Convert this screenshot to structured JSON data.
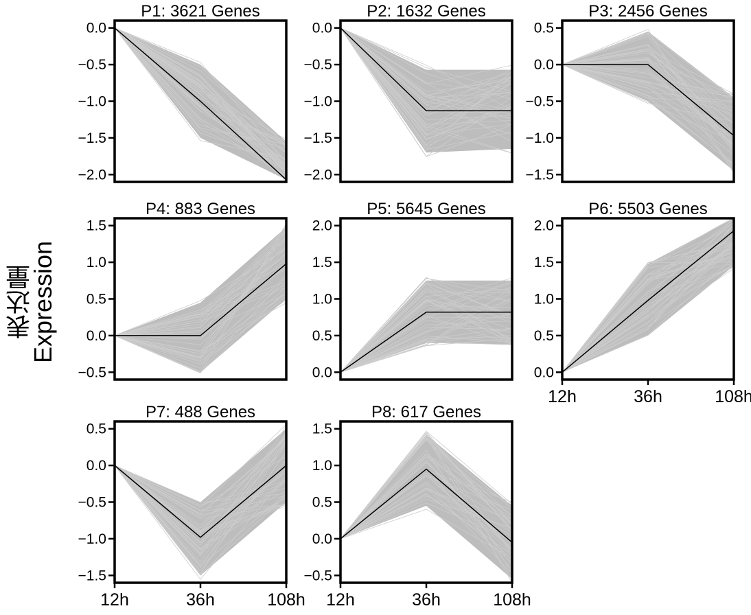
{
  "figure": {
    "ylabel_cn": "表达量",
    "ylabel_en": "Expression",
    "band_color": "#bdbdbd",
    "line_color": "#cccccc",
    "mean_color": "#000000"
  },
  "chart_data": [
    {
      "type": "line",
      "title": "P1: 3621 Genes",
      "categories": [
        "12h",
        "36h",
        "108h"
      ],
      "mean": [
        0,
        -1.0,
        -2.07
      ],
      "band_lower": [
        0,
        -1.5,
        -2.07
      ],
      "band_upper": [
        0,
        -0.5,
        -1.55
      ],
      "yticks": [
        "0.0",
        "-0.5",
        "-1.0",
        "-1.5",
        "-2.0"
      ],
      "ytick_values": [
        0,
        -0.5,
        -1.0,
        -1.5,
        -2.0
      ],
      "ylim": [
        -2.1,
        0.1
      ],
      "show_xticks": false
    },
    {
      "type": "line",
      "title": "P2: 1632 Genes",
      "categories": [
        "12h",
        "36h",
        "108h"
      ],
      "mean": [
        0,
        -1.13,
        -1.13
      ],
      "band_lower": [
        0,
        -1.7,
        -1.65
      ],
      "band_upper": [
        0,
        -0.57,
        -0.57
      ],
      "yticks": [
        "0.0",
        "-0.5",
        "-1.0",
        "-1.5",
        "-2.0"
      ],
      "ytick_values": [
        0,
        -0.5,
        -1.0,
        -1.5,
        -2.0
      ],
      "ylim": [
        -2.1,
        0.1
      ],
      "show_xticks": false
    },
    {
      "type": "line",
      "title": "P3: 2456 Genes",
      "categories": [
        "12h",
        "36h",
        "108h"
      ],
      "mean": [
        0,
        0,
        -0.97
      ],
      "band_lower": [
        0,
        -0.5,
        -1.45
      ],
      "band_upper": [
        0,
        0.45,
        -0.45
      ],
      "yticks": [
        "0.5",
        "0.0",
        "-0.5",
        "-1.0",
        "-1.5"
      ],
      "ytick_values": [
        0.5,
        0,
        -0.5,
        -1.0,
        -1.5
      ],
      "ylim": [
        -1.6,
        0.6
      ],
      "show_xticks": false
    },
    {
      "type": "line",
      "title": "P4: 883 Genes",
      "categories": [
        "12h",
        "36h",
        "108h"
      ],
      "mean": [
        0,
        0,
        0.98
      ],
      "band_lower": [
        0,
        -0.5,
        0.5
      ],
      "band_upper": [
        0,
        0.45,
        1.48
      ],
      "yticks": [
        "1.5",
        "1.0",
        "0.5",
        "0.0",
        "-0.5"
      ],
      "ytick_values": [
        1.5,
        1.0,
        0.5,
        0,
        -0.5
      ],
      "ylim": [
        -0.6,
        1.6
      ],
      "show_xticks": false
    },
    {
      "type": "line",
      "title": "P5: 5645 Genes",
      "categories": [
        "12h",
        "36h",
        "108h"
      ],
      "mean": [
        0,
        0.82,
        0.82
      ],
      "band_lower": [
        0,
        0.4,
        0.38
      ],
      "band_upper": [
        0,
        1.25,
        1.25
      ],
      "yticks": [
        "2.0",
        "1.5",
        "1.0",
        "0.5",
        "0.0"
      ],
      "ytick_values": [
        2.0,
        1.5,
        1.0,
        0.5,
        0
      ],
      "ylim": [
        -0.1,
        2.1
      ],
      "show_xticks": false
    },
    {
      "type": "line",
      "title": "P6: 5503 Genes",
      "categories": [
        "12h",
        "36h",
        "108h"
      ],
      "mean": [
        0,
        0.98,
        1.93
      ],
      "band_lower": [
        0,
        0.5,
        1.45
      ],
      "band_upper": [
        0,
        1.48,
        2.1
      ],
      "yticks": [
        "2.0",
        "1.5",
        "1.0",
        "0.5",
        "0.0"
      ],
      "ytick_values": [
        2.0,
        1.5,
        1.0,
        0.5,
        0
      ],
      "ylim": [
        -0.1,
        2.1
      ],
      "show_xticks": true
    },
    {
      "type": "line",
      "title": "P7: 488 Genes",
      "categories": [
        "12h",
        "36h",
        "108h"
      ],
      "mean": [
        0,
        -0.98,
        0
      ],
      "band_lower": [
        0,
        -1.5,
        -0.5
      ],
      "band_upper": [
        0,
        -0.5,
        0.5
      ],
      "yticks": [
        "0.5",
        "0.0",
        "-0.5",
        "-1.0",
        "-1.5"
      ],
      "ytick_values": [
        0.5,
        0,
        -0.5,
        -1.0,
        -1.5
      ],
      "ylim": [
        -1.6,
        0.6
      ],
      "show_xticks": true
    },
    {
      "type": "line",
      "title": "P8: 617 Genes",
      "categories": [
        "12h",
        "36h",
        "108h"
      ],
      "mean": [
        0,
        0.95,
        -0.05
      ],
      "band_lower": [
        0,
        0.45,
        -0.55
      ],
      "band_upper": [
        0,
        1.42,
        0.45
      ],
      "yticks": [
        "1.5",
        "1.0",
        "0.5",
        "0.0",
        "-0.5"
      ],
      "ytick_values": [
        1.5,
        1.0,
        0.5,
        0,
        -0.5
      ],
      "ylim": [
        -0.6,
        1.6
      ],
      "show_xticks": true
    }
  ]
}
